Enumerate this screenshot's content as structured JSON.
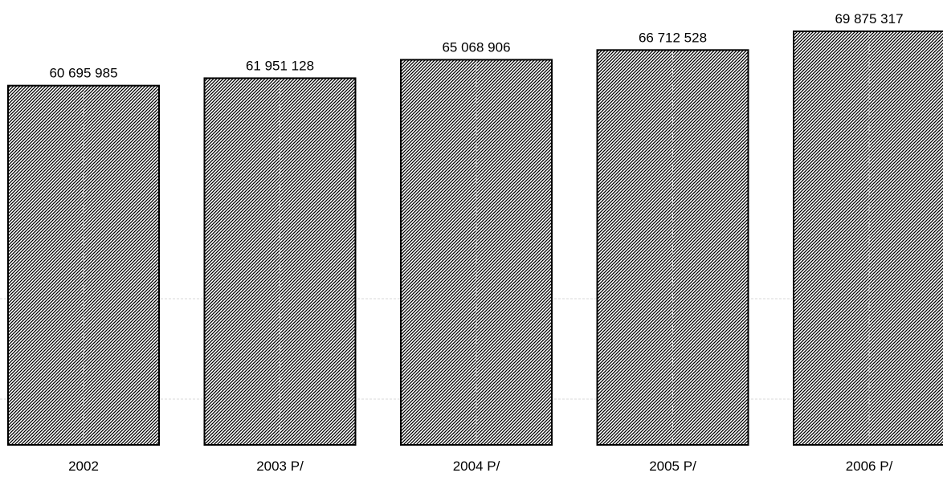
{
  "chart_data": {
    "type": "bar",
    "categories": [
      "2002",
      "2003 P/",
      "2004 P/",
      "2005 P/",
      "2006 P/"
    ],
    "values": [
      60695985,
      61951128,
      65068906,
      66712528,
      69875317
    ],
    "value_labels": [
      "60 695 985",
      "61 951 128",
      "65 068 906",
      "66 712 528",
      "69 875 317"
    ],
    "title": "",
    "xlabel": "",
    "ylabel": "",
    "ylim": [
      0,
      69875317
    ],
    "grid": true,
    "legend": "none",
    "bar_pattern": "diagonal-hatch",
    "colors": {
      "bar_fill": "#ffffff",
      "hatch": "#000000",
      "bar_border": "#000000",
      "grid": "#d9d9d9"
    }
  }
}
